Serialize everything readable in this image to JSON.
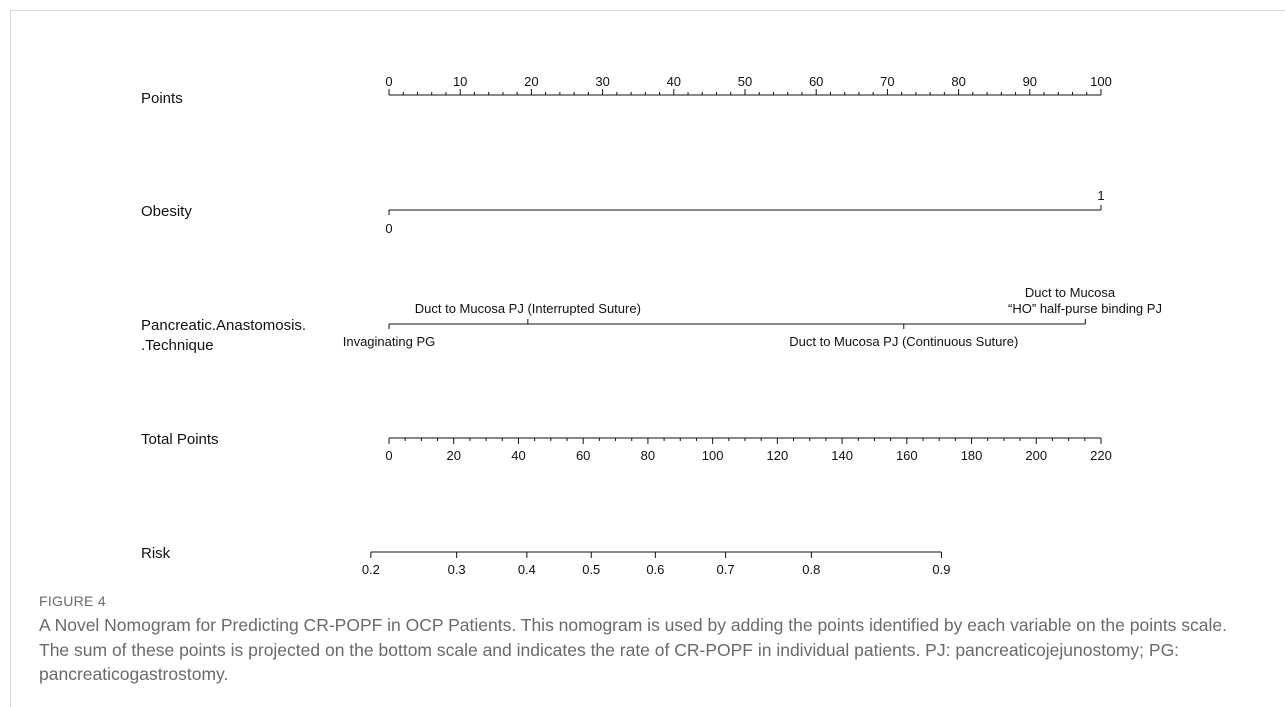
{
  "figure": {
    "label": "FIGURE 4",
    "caption": "A Novel Nomogram for Predicting CR-POPF in OCP Patients. This nomogram is used by adding the points identified by each variable on the points scale. The sum of these points is projected on the bottom scale and indicates the rate of CR-POPF in individual patients. PJ: pancreaticojejunostomy; PG: pancreaticogastrostomy."
  },
  "chart_data": {
    "type": "nomogram",
    "title": "",
    "axes": [
      {
        "key": "points",
        "label": "Points",
        "range": [
          0,
          100
        ],
        "major_ticks": [
          0,
          10,
          20,
          30,
          40,
          50,
          60,
          70,
          80,
          90,
          100
        ],
        "minor_step": 2
      },
      {
        "key": "obesity",
        "label": "Obesity",
        "points_range": [
          0,
          100
        ],
        "levels": [
          {
            "value": "0",
            "points": 0
          },
          {
            "value": "1",
            "points": 100
          }
        ]
      },
      {
        "key": "technique",
        "label_lines": [
          "Pancreatic.Anastomosis.",
          ".Technique"
        ],
        "points_range": [
          0,
          97.8
        ],
        "levels": [
          {
            "value": "Invaginating PG",
            "points": 0
          },
          {
            "value": "Duct to Mucosa PJ (Interrupted Suture)",
            "points": 19.5
          },
          {
            "value": "Duct to Mucosa PJ (Continuous Suture)",
            "points": 72.3
          },
          {
            "value_lines": [
              "Duct to Mucosa",
              "“HO” half-purse binding PJ"
            ],
            "points": 97.8
          }
        ]
      },
      {
        "key": "total_points",
        "label": "Total Points",
        "range": [
          0,
          220
        ],
        "major_ticks": [
          0,
          20,
          40,
          60,
          80,
          100,
          120,
          140,
          160,
          180,
          200,
          220
        ],
        "minor_step": 5
      },
      {
        "key": "risk",
        "label": "Risk",
        "ticks": [
          {
            "label": "0.2",
            "total_points": -5.6
          },
          {
            "label": "0.3",
            "total_points": 20.9
          },
          {
            "label": "0.4",
            "total_points": 42.6
          },
          {
            "label": "0.5",
            "total_points": 62.5
          },
          {
            "label": "0.6",
            "total_points": 82.3
          },
          {
            "label": "0.7",
            "total_points": 104.0
          },
          {
            "label": "0.8",
            "total_points": 130.5
          },
          {
            "label": "0.9",
            "total_points": 170.7
          }
        ]
      }
    ]
  }
}
